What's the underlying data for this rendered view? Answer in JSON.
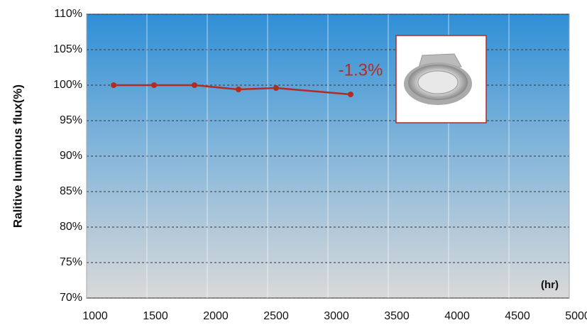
{
  "chart_data": {
    "type": "line",
    "y_label": "Ralitive luminous flux(%)",
    "x_unit": "(hr)",
    "annotation": "-1.3%",
    "x": [
      1224,
      1559,
      1894,
      2259,
      2570,
      3188
    ],
    "series": [
      {
        "color": "#b52a22",
        "values": [
          100,
          100,
          100,
          99.4,
          99.6,
          98.7
        ]
      }
    ],
    "xlim": [
      1000,
      5000
    ],
    "xticks": [
      1000,
      1500,
      2000,
      2500,
      3000,
      3500,
      4000,
      4500,
      5000
    ],
    "ylim": [
      70,
      110
    ],
    "yticks": [
      {
        "value": 70,
        "label": "70%"
      },
      {
        "value": 75,
        "label": "75%"
      },
      {
        "value": 80,
        "label": "80%"
      },
      {
        "value": 85,
        "label": "85%"
      },
      {
        "value": 90,
        "label": "90%"
      },
      {
        "value": 95,
        "label": "95%"
      },
      {
        "value": 100,
        "label": "100%"
      },
      {
        "value": 105,
        "label": "105%"
      },
      {
        "value": 110,
        "label": "110%"
      }
    ],
    "grid": true
  }
}
